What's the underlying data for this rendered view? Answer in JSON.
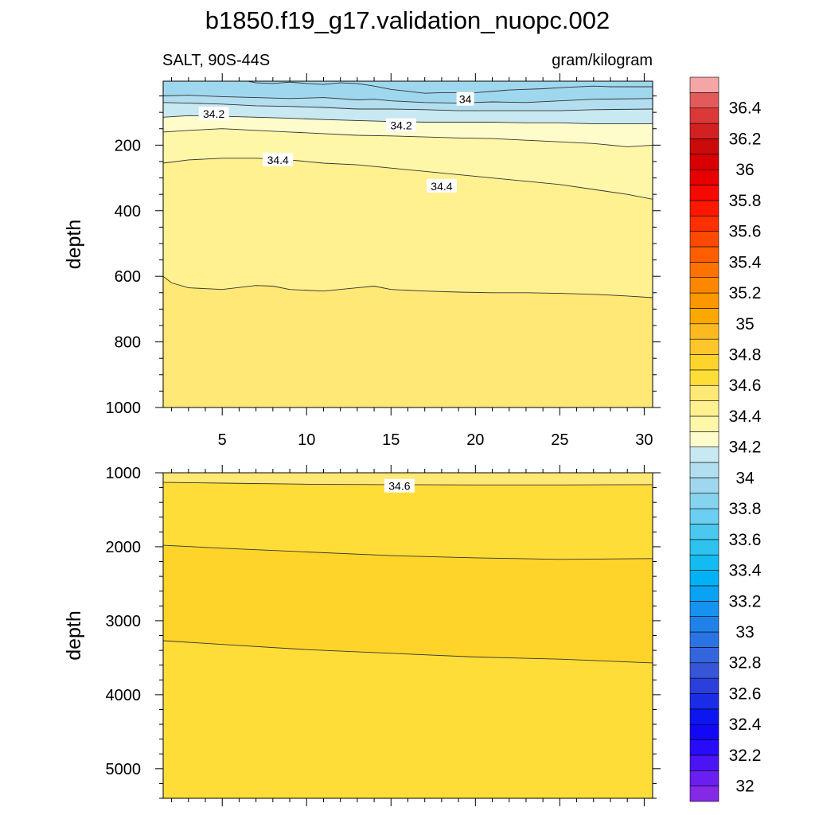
{
  "title": "b1850.f19_g17.validation_nuopc.002",
  "variable_label": "SALT, 90S-44S",
  "units_label": "gram/kilogram",
  "colorbar": {
    "levels": [
      31.9,
      32,
      32.1,
      32.2,
      32.3,
      32.4,
      32.5,
      32.6,
      32.7,
      32.8,
      32.9,
      33,
      33.1,
      33.2,
      33.3,
      33.4,
      33.5,
      33.6,
      33.7,
      33.8,
      33.9,
      34,
      34.1,
      34.2,
      34.3,
      34.4,
      34.5,
      34.6,
      34.7,
      34.8,
      34.9,
      35,
      35.1,
      35.2,
      35.3,
      35.4,
      35.5,
      35.6,
      35.7,
      35.8,
      35.9,
      36,
      36.1,
      36.2,
      36.3,
      36.4,
      36.5,
      36.6
    ],
    "tick_labels": [
      "32",
      "32.2",
      "32.4",
      "32.6",
      "32.8",
      "33",
      "33.2",
      "33.4",
      "33.6",
      "33.8",
      "34",
      "34.2",
      "34.4",
      "34.6",
      "34.8",
      "35",
      "35.2",
      "35.4",
      "35.6",
      "35.8",
      "36",
      "36.2",
      "36.4"
    ],
    "colors": [
      "#8429e6",
      "#6a1ef0",
      "#4a14f5",
      "#2a0bf8",
      "#1208f5",
      "#0c16f0",
      "#1a2ce6",
      "#2a3fdc",
      "#3655d8",
      "#3366dd",
      "#2a73e4",
      "#1f82ea",
      "#1692f0",
      "#0aa2f4",
      "#00b2f5",
      "#12bcf0",
      "#2ec2ee",
      "#4ac8ee",
      "#6acff0",
      "#86d3f0",
      "#9fd8ee",
      "#b2def0",
      "#c8e8f2",
      "#fffccc",
      "#fff7a8",
      "#fff090",
      "#ffe875",
      "#ffdd38",
      "#ffd42a",
      "#fec62a",
      "#feb920",
      "#fda800",
      "#fc9700",
      "#fd8700",
      "#fd7200",
      "#fe5e00",
      "#fe4a00",
      "#fe3000",
      "#fe1800",
      "#f40a00",
      "#e80000",
      "#d80000",
      "#cc0a0a",
      "#d42020",
      "#dc3838",
      "#e45a5a",
      "#f5a5a5"
    ]
  },
  "chart_data": [
    {
      "type": "contour",
      "panel": "upper",
      "xlabel": "",
      "ylabel": "depth",
      "xlim": [
        1.5,
        30.5
      ],
      "ylim": [
        1000,
        5
      ],
      "x_ticks": [
        5,
        10,
        15,
        20,
        25,
        30
      ],
      "y_ticks": [
        200,
        400,
        600,
        800,
        1000
      ],
      "x_tick_labels": [
        "5",
        "10",
        "15",
        "20",
        "25",
        "30"
      ],
      "y_tick_labels": [
        "200",
        "400",
        "600",
        "800",
        "1000"
      ],
      "x_minor_step": 1,
      "y_minor_step": 50,
      "contours": [
        {
          "level": 33.9,
          "color": "#9fd8ee",
          "points": [
            [
              5,
              0
            ],
            [
              6,
              0
            ],
            [
              7,
              10
            ],
            [
              8,
              12
            ],
            [
              9,
              8
            ],
            [
              10,
              12
            ],
            [
              11,
              15
            ],
            [
              12,
              10
            ],
            [
              13,
              12
            ],
            [
              14,
              20
            ],
            [
              15,
              30
            ],
            [
              17,
              42
            ],
            [
              18,
              40
            ],
            [
              20,
              40
            ],
            [
              22,
              32
            ],
            [
              24,
              28
            ],
            [
              25,
              25
            ],
            [
              27,
              20
            ],
            [
              28,
              22
            ],
            [
              30,
              22
            ],
            [
              30.5,
              22
            ]
          ]
        },
        {
          "level": 34.0,
          "color": "#b2def0",
          "points": [
            [
              1.5,
              50
            ],
            [
              3,
              48
            ],
            [
              5,
              52
            ],
            [
              7,
              55
            ],
            [
              9,
              58
            ],
            [
              11,
              55
            ],
            [
              13,
              62
            ],
            [
              14,
              60
            ],
            [
              15,
              65
            ],
            [
              17,
              70
            ],
            [
              19,
              72
            ],
            [
              21,
              68
            ],
            [
              23,
              70
            ],
            [
              25,
              65
            ],
            [
              27,
              60
            ],
            [
              30.5,
              58
            ]
          ]
        },
        {
          "level": 34.1,
          "color": "#c8e8f2",
          "points": [
            [
              1.5,
              70
            ],
            [
              3,
              72
            ],
            [
              5,
              75
            ],
            [
              7,
              80
            ],
            [
              9,
              82
            ],
            [
              11,
              85
            ],
            [
              13,
              90
            ],
            [
              15,
              90
            ],
            [
              17,
              92
            ],
            [
              19,
              95
            ],
            [
              21,
              95
            ],
            [
              23,
              95
            ],
            [
              25,
              95
            ],
            [
              27,
              92
            ],
            [
              30.5,
              90
            ]
          ]
        },
        {
          "level": 34.2,
          "color": "#fffccc",
          "points": [
            [
              1.5,
              115
            ],
            [
              3,
              110
            ],
            [
              5,
              112
            ],
            [
              7,
              115
            ],
            [
              9,
              118
            ],
            [
              11,
              122
            ],
            [
              13,
              125
            ],
            [
              15,
              128
            ],
            [
              17,
              130
            ],
            [
              19,
              130
            ],
            [
              21,
              130
            ],
            [
              23,
              132
            ],
            [
              25,
              132
            ],
            [
              27,
              135
            ],
            [
              30.5,
              135
            ]
          ]
        },
        {
          "level": 34.3,
          "color": "#fff7a8",
          "points": [
            [
              1.5,
              160
            ],
            [
              3,
              155
            ],
            [
              5,
              150
            ],
            [
              7,
              155
            ],
            [
              9,
              160
            ],
            [
              11,
              165
            ],
            [
              13,
              170
            ],
            [
              15,
              172
            ],
            [
              17,
              175
            ],
            [
              19,
              178
            ],
            [
              21,
              180
            ],
            [
              23,
              185
            ],
            [
              25,
              190
            ],
            [
              27,
              195
            ],
            [
              29,
              205
            ],
            [
              30.5,
              200
            ]
          ]
        },
        {
          "level": 34.4,
          "color": "#fff090",
          "points": [
            [
              1.5,
              255
            ],
            [
              3,
              245
            ],
            [
              5,
              240
            ],
            [
              7,
              240
            ],
            [
              9,
              245
            ],
            [
              11,
              255
            ],
            [
              13,
              260
            ],
            [
              15,
              270
            ],
            [
              17,
              280
            ],
            [
              19,
              290
            ],
            [
              21,
              300
            ],
            [
              23,
              310
            ],
            [
              25,
              320
            ],
            [
              27,
              335
            ],
            [
              29,
              350
            ],
            [
              30.5,
              365
            ]
          ]
        },
        {
          "level": 34.5,
          "color": "#ffe875",
          "points": [
            [
              1.5,
              600
            ],
            [
              2,
              620
            ],
            [
              3,
              635
            ],
            [
              5,
              640
            ],
            [
              7,
              628
            ],
            [
              8,
              630
            ],
            [
              9,
              640
            ],
            [
              11,
              645
            ],
            [
              13,
              635
            ],
            [
              14,
              630
            ],
            [
              15,
              640
            ],
            [
              17,
              645
            ],
            [
              19,
              648
            ],
            [
              21,
              650
            ],
            [
              23,
              650
            ],
            [
              25,
              652
            ],
            [
              27,
              655
            ],
            [
              29,
              660
            ],
            [
              30.5,
              665
            ]
          ]
        }
      ],
      "contour_labels": [
        {
          "text": "34",
          "x": 19.4,
          "y": 60
        },
        {
          "text": "34.2",
          "x": 4.5,
          "y": 105
        },
        {
          "text": "34.2",
          "x": 15.6,
          "y": 140
        },
        {
          "text": "34.4",
          "x": 8.3,
          "y": 245
        },
        {
          "text": "34.4",
          "x": 18.0,
          "y": 325
        }
      ]
    },
    {
      "type": "contour",
      "panel": "lower",
      "xlabel": "",
      "ylabel": "depth",
      "xlim": [
        1.5,
        30.5
      ],
      "ylim": [
        5400,
        1000
      ],
      "x_ticks": [
        5,
        10,
        15,
        20,
        25,
        30
      ],
      "y_ticks": [
        1000,
        2000,
        3000,
        4000,
        5000
      ],
      "x_tick_labels": [
        "",
        "",
        "",
        "",
        "",
        ""
      ],
      "y_tick_labels": [
        "1000",
        "2000",
        "3000",
        "4000",
        "5000"
      ],
      "x_minor_step": 1,
      "y_minor_step": 200,
      "contours": [
        {
          "level": 34.5,
          "color": "#ffe875",
          "points": [
            [
              1.5,
              1000
            ],
            [
              30.5,
              1000
            ]
          ]
        },
        {
          "level": 34.6,
          "color": "#ffdd38",
          "points": [
            [
              1.5,
              1130
            ],
            [
              5,
              1140
            ],
            [
              10,
              1155
            ],
            [
              15,
              1160
            ],
            [
              20,
              1165
            ],
            [
              25,
              1165
            ],
            [
              30.5,
              1160
            ]
          ]
        },
        {
          "level": 34.7,
          "color": "#ffd42a",
          "points": [
            [
              1.5,
              1980
            ],
            [
              5,
              2020
            ],
            [
              10,
              2070
            ],
            [
              15,
              2120
            ],
            [
              20,
              2150
            ],
            [
              25,
              2170
            ],
            [
              30.5,
              2160
            ]
          ]
        },
        {
          "level": 34.6,
          "color": "#ffdd38",
          "points": [
            [
              1.5,
              3270
            ],
            [
              5,
              3320
            ],
            [
              10,
              3390
            ],
            [
              15,
              3440
            ],
            [
              20,
              3490
            ],
            [
              25,
              3520
            ],
            [
              30.5,
              3570
            ]
          ]
        }
      ],
      "contour_labels": [
        {
          "text": "34.6",
          "x": 15.5,
          "y": 1180
        }
      ]
    }
  ]
}
